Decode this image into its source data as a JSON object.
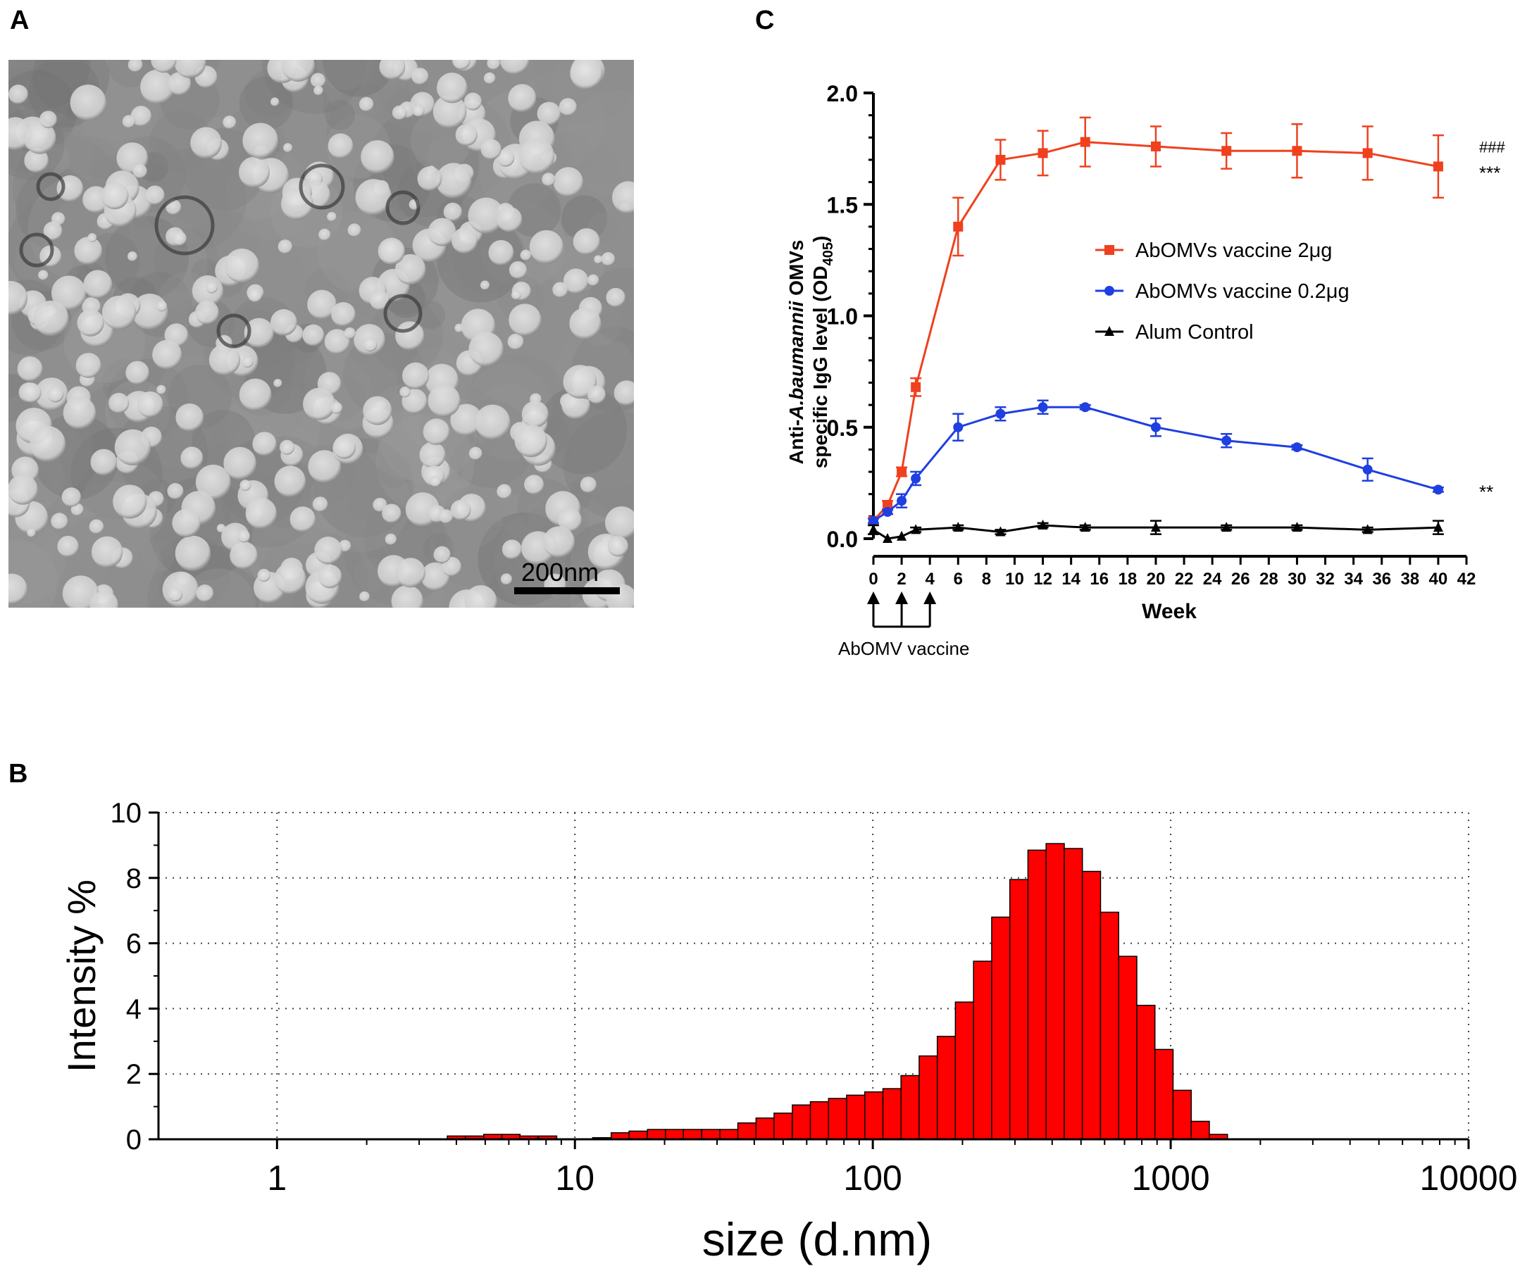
{
  "panels": {
    "a_label": "A",
    "b_label": "B",
    "c_label": "C",
    "tem_scale_label": "200nm"
  },
  "chart_data": [
    {
      "panel": "C",
      "type": "line",
      "xlabel": "Week",
      "ylabel_line1_pre": "Anti-",
      "ylabel_line1_italic": "A.baumannii",
      "ylabel_line1_post": " OMVs",
      "ylabel_line2_pre": "specific IgG level (OD",
      "ylabel_line2_sub": "405",
      "ylabel_line2_post": ")",
      "xlim": [
        0,
        42
      ],
      "ylim": [
        0,
        2.0
      ],
      "xticks": [
        0,
        2,
        4,
        6,
        8,
        10,
        12,
        14,
        16,
        18,
        20,
        22,
        24,
        26,
        28,
        30,
        32,
        34,
        36,
        38,
        40,
        42
      ],
      "yticks": [
        0.0,
        0.5,
        1.0,
        1.5,
        2.0
      ],
      "ytick_labels": [
        "0.0",
        "0.5",
        "1.0",
        "1.5",
        "2.0"
      ],
      "legend_position": "center-right",
      "series": [
        {
          "name": "AbOMVs vaccine 2μg",
          "color": "#f0401e",
          "marker": "square",
          "x": [
            0,
            1,
            2,
            3,
            6,
            9,
            12,
            15,
            20,
            25,
            30,
            35,
            40
          ],
          "y": [
            0.08,
            0.15,
            0.3,
            0.68,
            1.4,
            1.7,
            1.73,
            1.78,
            1.76,
            1.74,
            1.74,
            1.73,
            1.67
          ],
          "err": [
            0.01,
            0.02,
            0.02,
            0.04,
            0.13,
            0.09,
            0.1,
            0.11,
            0.09,
            0.08,
            0.12,
            0.12,
            0.14
          ]
        },
        {
          "name": "AbOMVs vaccine 0.2μg",
          "color": "#1f3fe0",
          "marker": "circle",
          "x": [
            0,
            1,
            2,
            3,
            6,
            9,
            12,
            15,
            20,
            25,
            30,
            35,
            40
          ],
          "y": [
            0.08,
            0.12,
            0.17,
            0.27,
            0.5,
            0.56,
            0.59,
            0.59,
            0.5,
            0.44,
            0.41,
            0.31,
            0.22
          ],
          "err": [
            0.01,
            0.01,
            0.03,
            0.03,
            0.06,
            0.03,
            0.03,
            0.01,
            0.04,
            0.03,
            0.01,
            0.05,
            0.01
          ]
        },
        {
          "name": "Alum Control",
          "color": "#000000",
          "marker": "triangle",
          "x": [
            0,
            1,
            2,
            3,
            6,
            9,
            12,
            15,
            20,
            25,
            30,
            35,
            40
          ],
          "y": [
            0.04,
            0.0,
            0.01,
            0.04,
            0.05,
            0.03,
            0.06,
            0.05,
            0.05,
            0.05,
            0.05,
            0.04,
            0.05
          ],
          "err": [
            0.02,
            0.0,
            0.0,
            0.01,
            0.01,
            0.01,
            0.01,
            0.01,
            0.03,
            0.01,
            0.01,
            0.01,
            0.03
          ]
        }
      ],
      "annotations": [
        {
          "text": "###",
          "series": 0
        },
        {
          "text": "***",
          "series": 0
        },
        {
          "text": "**",
          "series": 1
        }
      ],
      "vaccination_weeks": [
        0,
        2,
        4
      ],
      "vaccination_label": "AbOMV vaccine"
    },
    {
      "panel": "B",
      "type": "bar",
      "xlabel": "size (d.nm)",
      "ylabel": "Intensity %",
      "xscale": "log",
      "xlim": [
        0.4,
        10000
      ],
      "ylim": [
        0,
        10
      ],
      "xticks": [
        1,
        10,
        100,
        1000,
        10000
      ],
      "xtick_labels": [
        "1",
        "10",
        "100",
        "1000",
        "10000"
      ],
      "yticks": [
        0,
        2,
        4,
        6,
        8,
        10
      ],
      "ytick_labels": [
        "0",
        "2",
        "4",
        "6",
        "8",
        "10"
      ],
      "grid": true,
      "bar_color": "#ff0000",
      "bins": [
        4.0,
        4.6,
        5.3,
        6.1,
        7.0,
        8.1,
        9.3,
        10.7,
        12.3,
        14.2,
        16.3,
        18.8,
        21.6,
        24.8,
        28.6,
        32.9,
        37.8,
        43.5,
        50.0,
        57.6,
        66.2,
        76.2,
        87.6,
        100.8,
        116.0,
        133.4,
        153.5,
        176.6,
        203.1,
        233.7,
        268.9,
        309.4,
        355.9,
        409.5,
        471.1,
        542.0,
        623.5,
        717.4,
        825.3,
        949.6,
        1092.5,
        1256.8,
        1445.9,
        1663.5
      ],
      "values": [
        0.1,
        0.1,
        0.15,
        0.15,
        0.1,
        0.1,
        0.0,
        0.0,
        0.05,
        0.2,
        0.25,
        0.3,
        0.3,
        0.3,
        0.3,
        0.3,
        0.5,
        0.65,
        0.8,
        1.05,
        1.15,
        1.25,
        1.35,
        1.45,
        1.55,
        1.95,
        2.55,
        3.15,
        4.2,
        5.45,
        6.8,
        7.95,
        8.85,
        9.05,
        8.9,
        8.2,
        6.95,
        5.6,
        4.1,
        2.75,
        1.5,
        0.55,
        0.15,
        0.0
      ]
    }
  ]
}
